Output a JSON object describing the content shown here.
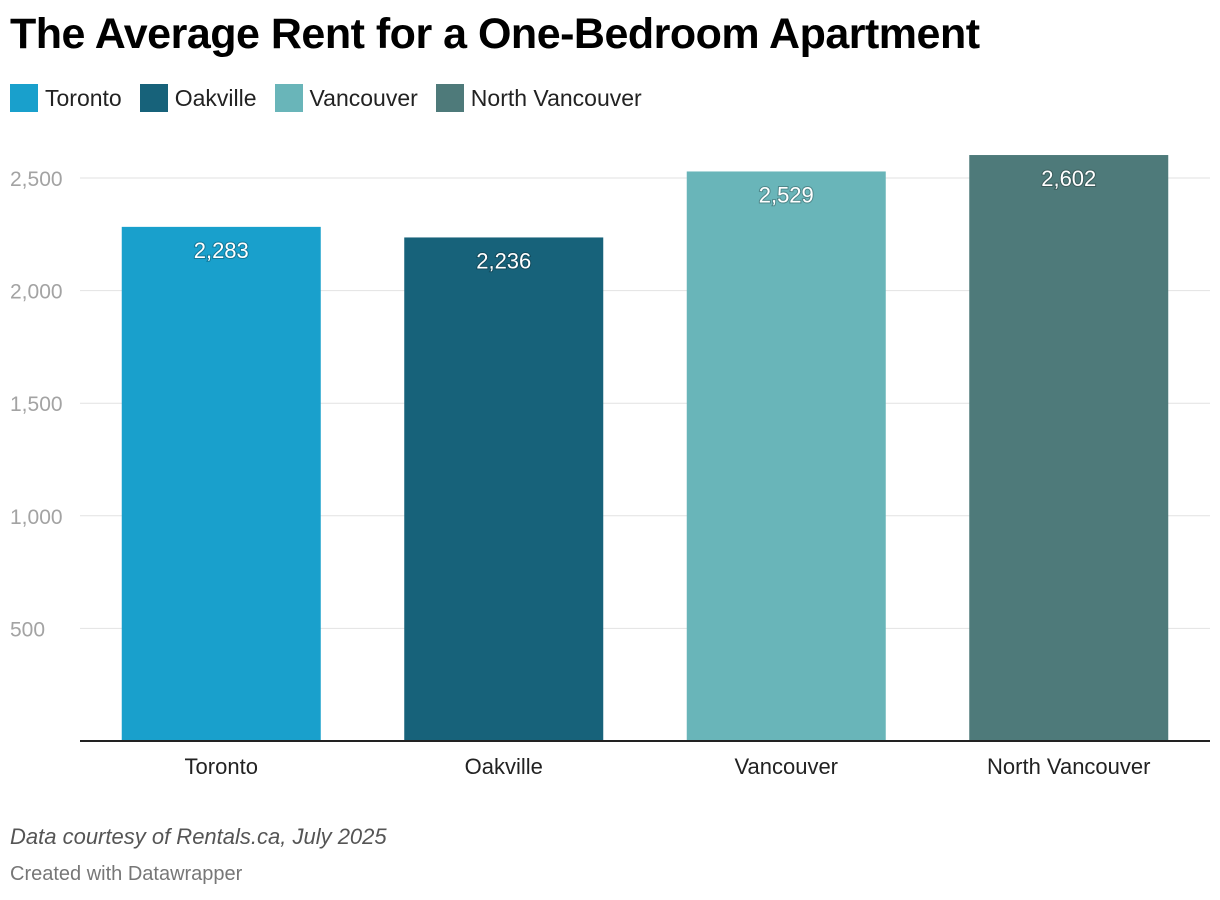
{
  "title": "The Average Rent for a One-Bedroom Apartment",
  "legend": [
    {
      "label": "Toronto",
      "color": "#19a0cc"
    },
    {
      "label": "Oakville",
      "color": "#17627a"
    },
    {
      "label": "Vancouver",
      "color": "#69b5b9"
    },
    {
      "label": "North Vancouver",
      "color": "#4e7a7a"
    }
  ],
  "chart_data": {
    "type": "bar",
    "categories": [
      "Toronto",
      "Oakville",
      "Vancouver",
      "North Vancouver"
    ],
    "values": [
      2283,
      2236,
      2529,
      2602
    ],
    "value_labels": [
      "2,283",
      "2,236",
      "2,529",
      "2,602"
    ],
    "colors": [
      "#19a0cc",
      "#17627a",
      "#69b5b9",
      "#4e7a7a"
    ],
    "yticks": [
      500,
      1000,
      1500,
      2000,
      2500
    ],
    "ytick_labels": [
      "500",
      "1,000",
      "1,500",
      "2,000",
      "2,500"
    ],
    "ylim": [
      0,
      2700
    ],
    "grid": true,
    "legend_position": "top-left",
    "xlabel": "",
    "ylabel": ""
  },
  "footer": {
    "source": "Data courtesy of Rentals.ca, July 2025",
    "credit": "Created with Datawrapper"
  }
}
